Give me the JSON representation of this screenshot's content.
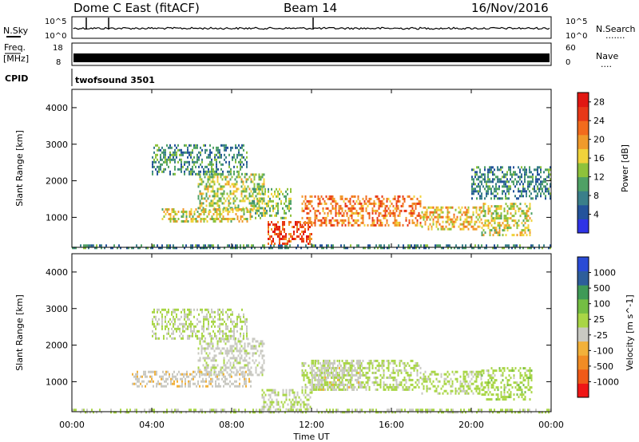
{
  "header": {
    "station": "Dome C East (fitACF)",
    "beam": "Beam 14",
    "date": "16/Nov/2016"
  },
  "top_panels": {
    "nsky_label": "N.Sky",
    "nsearch_label": "N.Search",
    "nsearch_dots": ".......",
    "nsky_ticks": [
      "10^5",
      "10^0"
    ],
    "nsearch_ticks": [
      "10^5",
      "10^0"
    ],
    "freq_label": "Freq.",
    "freq_unit": "[MHz]",
    "freq_ticks": [
      "18",
      "8"
    ],
    "nave_label": "Nave",
    "nave_dots": "....",
    "nave_ticks": [
      "60",
      "0"
    ],
    "cpid_label": "CPID",
    "cpid_value": "twofsound 3501"
  },
  "colors": {
    "power_scale": [
      "#2f34e6",
      "#24539b",
      "#3a7f8a",
      "#4fa165",
      "#8ec23b",
      "#f0d33b",
      "#f09a2b",
      "#f26b1d",
      "#e83818",
      "#e11712"
    ],
    "velocity_scale": [
      "#ef1616",
      "#f05a18",
      "#f18c24",
      "#f2b13a",
      "#c9c9c2",
      "#a9d646",
      "#74be43",
      "#3f9a57",
      "#2d5e9b",
      "#2a4bd6"
    ]
  },
  "chart_data": [
    {
      "type": "heatmap",
      "panel": "power",
      "ylabel": "Slant Range [km]",
      "xlabel": "",
      "x_ticks": [
        "00:00",
        "04:00",
        "08:00",
        "12:00",
        "16:00",
        "20:00",
        "00:00"
      ],
      "y_ticks": [
        "1000",
        "2000",
        "3000",
        "4000"
      ],
      "ylim": [
        180,
        4500
      ],
      "xlim_hours": [
        0,
        24
      ],
      "colorbar": {
        "label": "Power [dB]",
        "ticks": [
          "4",
          "8",
          "12",
          "16",
          "20",
          "24",
          "28"
        ],
        "range": [
          0,
          30
        ]
      },
      "regions": [
        {
          "t0": 0.0,
          "t1": 24.0,
          "r0": 180,
          "r1": 260,
          "value": 8
        },
        {
          "t0": 6.3,
          "t1": 9.6,
          "r0": 1200,
          "r1": 2200,
          "value": 14
        },
        {
          "t0": 4.5,
          "t1": 9.0,
          "r0": 900,
          "r1": 1250,
          "value": 16
        },
        {
          "t0": 9.8,
          "t1": 12.0,
          "r0": 300,
          "r1": 900,
          "value": 25
        },
        {
          "t0": 11.5,
          "t1": 17.5,
          "r0": 800,
          "r1": 1600,
          "value": 22
        },
        {
          "t0": 17.5,
          "t1": 20.5,
          "r0": 700,
          "r1": 1300,
          "value": 18
        },
        {
          "t0": 20.5,
          "t1": 23.0,
          "r0": 500,
          "r1": 1400,
          "value": 16
        },
        {
          "t0": 4.0,
          "t1": 8.8,
          "r0": 2200,
          "r1": 3000,
          "value": 9
        },
        {
          "t0": 9.0,
          "t1": 11.0,
          "r0": 1000,
          "r1": 1800,
          "value": 13
        },
        {
          "t0": 20.0,
          "t1": 24.0,
          "r0": 1500,
          "r1": 2400,
          "value": 8
        }
      ]
    },
    {
      "type": "heatmap",
      "panel": "velocity",
      "ylabel": "Slant Range [km]",
      "xlabel": "Time UT",
      "x_ticks": [
        "00:00",
        "04:00",
        "08:00",
        "12:00",
        "16:00",
        "20:00",
        "00:00"
      ],
      "y_ticks": [
        "1000",
        "2000",
        "3000",
        "4000"
      ],
      "ylim": [
        180,
        4500
      ],
      "xlim_hours": [
        0,
        24
      ],
      "colorbar": {
        "label": "Velocity [m s^-1]",
        "ticks": [
          "1000",
          "500",
          "100",
          "25",
          "-25",
          "-100",
          "-500",
          "-1000"
        ],
        "range": [
          -1200,
          1200
        ]
      },
      "regions": [
        {
          "t0": 0.0,
          "t1": 24.0,
          "r0": 180,
          "r1": 260,
          "value": 20
        },
        {
          "t0": 6.3,
          "t1": 9.6,
          "r0": 1200,
          "r1": 2200,
          "value": -80
        },
        {
          "t0": 4.0,
          "t1": 8.8,
          "r0": 2200,
          "r1": 3000,
          "value": 10
        },
        {
          "t0": 3.0,
          "t1": 9.0,
          "r0": 900,
          "r1": 1300,
          "value": -150
        },
        {
          "t0": 9.5,
          "t1": 12.0,
          "r0": 250,
          "r1": 800,
          "value": 10
        },
        {
          "t0": 11.5,
          "t1": 17.5,
          "r0": 800,
          "r1": 1600,
          "value": 60
        },
        {
          "t0": 12.0,
          "t1": 14.5,
          "r0": 800,
          "r1": 1600,
          "value": -100
        },
        {
          "t0": 17.5,
          "t1": 20.5,
          "r0": 700,
          "r1": 1300,
          "value": 70
        },
        {
          "t0": 20.5,
          "t1": 23.0,
          "r0": 500,
          "r1": 1400,
          "value": 120
        }
      ]
    }
  ]
}
